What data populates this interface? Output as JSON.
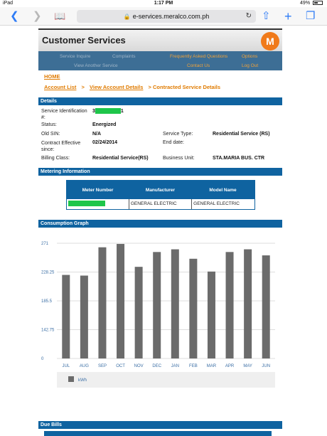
{
  "statusbar": {
    "device": "iPad",
    "time": "1:17 PM",
    "battery": "49%"
  },
  "browser": {
    "url": "e-services.meralco.com.ph"
  },
  "header": {
    "title": "Customer Services",
    "logo_letter": "M"
  },
  "nav": {
    "items": [
      "Service Inquire",
      "Complaints",
      "Frequently Asked Questions",
      "Options",
      "View Another Service",
      "Contact Us",
      "Log Out"
    ]
  },
  "breadcrumbs": {
    "home": "HOME",
    "account_list": "Account List",
    "view_account_details": "View Account Details",
    "current": "> Contracted Service Details",
    "sep": ">"
  },
  "details": {
    "section": "Details",
    "service_id_label": "Service Identification #:",
    "service_id_prefix": "3",
    "service_id_suffix": "1",
    "status_label": "Status:",
    "status_value": "Energized",
    "old_sin_label": "Old SIN:",
    "old_sin_value": "N/A",
    "service_type_label": "Service Type:",
    "service_type_value": "Residential Service (RS)",
    "contract_label": "Contract Effective since:",
    "contract_value": "02/24/2014",
    "end_date_label": "End date:",
    "billing_label": "Billing Class:",
    "billing_value": "Residential Service(RS)",
    "business_unit_label": "Business Unit:",
    "business_unit_value": "STA.MARIA BUS. CTR"
  },
  "metering": {
    "section": "Metering Information",
    "headers": [
      "Meter Number",
      "Manufacturer",
      "Model Name"
    ],
    "row": [
      "",
      "GENERAL ELECTRIC",
      "GENERAL ELECTRIC"
    ]
  },
  "consumption": {
    "section": "Consumption Graph"
  },
  "due_bills": {
    "section": "Due Bills"
  },
  "colors": {
    "bar": "#6b6b6b",
    "accent": "#0f63a0",
    "orange": "#e07b00"
  },
  "chart_data": {
    "type": "bar",
    "categories": [
      "JUL",
      "AUG",
      "SEP",
      "OCT",
      "NOV",
      "DEC",
      "JAN",
      "FEB",
      "MAR",
      "APR",
      "MAY",
      "JUN"
    ],
    "series": [
      {
        "name": "kWh",
        "values": [
          224,
          223,
          265,
          270,
          236,
          258,
          262,
          248,
          229,
          258,
          262,
          253
        ]
      }
    ],
    "yticks": [
      "271",
      "228.25",
      "185.5",
      "142.75",
      "0"
    ],
    "legend": "bottom",
    "grid": true
  }
}
